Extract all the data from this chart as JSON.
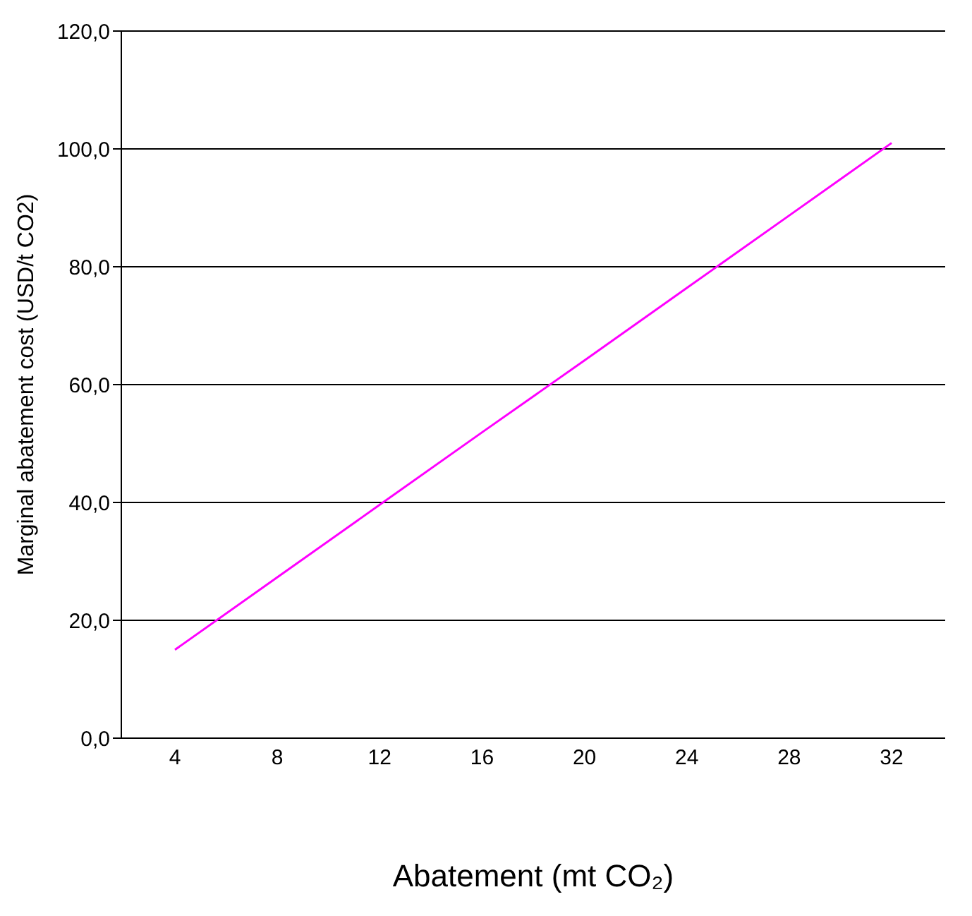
{
  "chart_data": {
    "type": "line",
    "xlabel": "Abatement (mt CO₂)",
    "ylabel": "Marginal abatement cost (USD/t CO2)",
    "categories": [
      "4",
      "8",
      "12",
      "16",
      "20",
      "24",
      "28",
      "32"
    ],
    "series": [
      {
        "color": "#ff00ff",
        "values": [
          15,
          27.3,
          39.6,
          51.9,
          64.1,
          76.4,
          88.7,
          101
        ]
      }
    ],
    "ylim": [
      0,
      120
    ],
    "yticks": [
      {
        "value": 0,
        "label": "0,0"
      },
      {
        "value": 20,
        "label": "20,0"
      },
      {
        "value": 40,
        "label": "40,0"
      },
      {
        "value": 60,
        "label": "60,0"
      },
      {
        "value": 80,
        "label": "80,0"
      },
      {
        "value": 100,
        "label": "100,0"
      },
      {
        "value": 120,
        "label": "120,0"
      }
    ],
    "grid": "y",
    "marker": "none",
    "line_style": "solid"
  }
}
